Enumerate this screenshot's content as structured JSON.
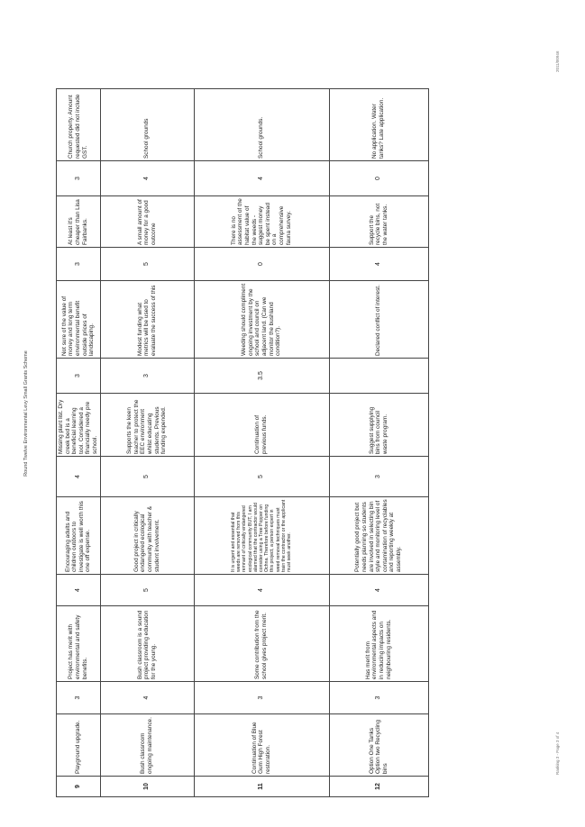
{
  "header": {
    "title": "Round Twelve Environmental Levy Small Grants Scheme"
  },
  "footer": {
    "left": "Ranking 3 - Page 3 of 4",
    "right": "2011/00946"
  },
  "rows": [
    {
      "num": "9",
      "name": "Playground upgrade.",
      "cells": [
        {
          "score": "3",
          "comment": "Project has merit with environmental and safety benefits."
        },
        {
          "score": "4",
          "comment": "Encouraging adults and children outdoors to investigate is well worth this one off expense."
        },
        {
          "score": "4",
          "comment": "Missing plant list. Dry creek bed is a beneficial learning tool. Considered a financially needy pre school."
        },
        {
          "score": "3",
          "comment": "Not sure of the value of money and long term environmental benefit outside prices of landscaping."
        },
        {
          "score": "3",
          "comment": "At least it's cheaper than Lisa Fairbanks."
        },
        {
          "score": "3",
          "comment": "Church property. Amount requested did not include GST."
        }
      ]
    },
    {
      "num": "10",
      "name": "Bush classroom ongoing maintenance.",
      "cells": [
        {
          "score": "4",
          "comment": "Bush classroom is a sound project providing education for the young."
        },
        {
          "score": "5",
          "comment": "Good project in critically endangered ecological community with teacher & student involvement."
        },
        {
          "score": "5",
          "comment": "Supports the keen teacher to protect the EEC environment whilst educating students. Previous funding expended."
        },
        {
          "score": "3",
          "comment": "Modest funding what metrics will be used to evaluate the success of this"
        },
        {
          "score": "5",
          "comment": "A small amount of money for a good outcome"
        },
        {
          "score": "4",
          "comment": "School grounds"
        }
      ]
    },
    {
      "num": "11",
      "name": "Continuation of Blue Gum High Forest restoration.",
      "cells": [
        {
          "score": "3",
          "comment": "Some contribution from the school gives project merit."
        },
        {
          "score": "4",
          "comment": "It is urgent and essential that weeds are removed from this remnant of critically endangered ecological community BUT, I am alarmed that the contractor would consider using a Tree Popper on Ochna. Therefore before funding this project, a person expert in weed removal techniques must train the contractor or the applicant must seek another.",
          "small": true
        },
        {
          "score": "5",
          "comment": "Continuation of previous funds."
        },
        {
          "score": "3.5",
          "comment": "Weeding should compliment ongoing investment by the school and council on adjacent land. (Can we monitor the bushland condition?)."
        },
        {
          "score": "0",
          "comment": "There is no assessment of the habitat value of the weeds - suggest money be spent instead on a comprehensive fauna survey."
        },
        {
          "score": "4",
          "comment": "School grounds."
        }
      ]
    },
    {
      "num": "12",
      "name": "Option One Tanks Option two Recycling bins",
      "cells": [
        {
          "score": "3",
          "comment": "Has merit from environmental aspects and in reducing impacts on neighbouring residents."
        },
        {
          "score": "4",
          "comment": "Potentially good project but needs planning so students are involved in selecting bin style and monitoring level of contamination of recyclables and reporting weekly at assembly."
        },
        {
          "score": "3",
          "comment": "Suggest supplying bins from council waste program."
        },
        {
          "score": "",
          "comment": "Declared conflict of interest."
        },
        {
          "score": "4",
          "comment": "Support the recycle bins, not the water tanks."
        },
        {
          "score": "0",
          "comment": "No application. Water tanks? Late application."
        }
      ]
    }
  ]
}
